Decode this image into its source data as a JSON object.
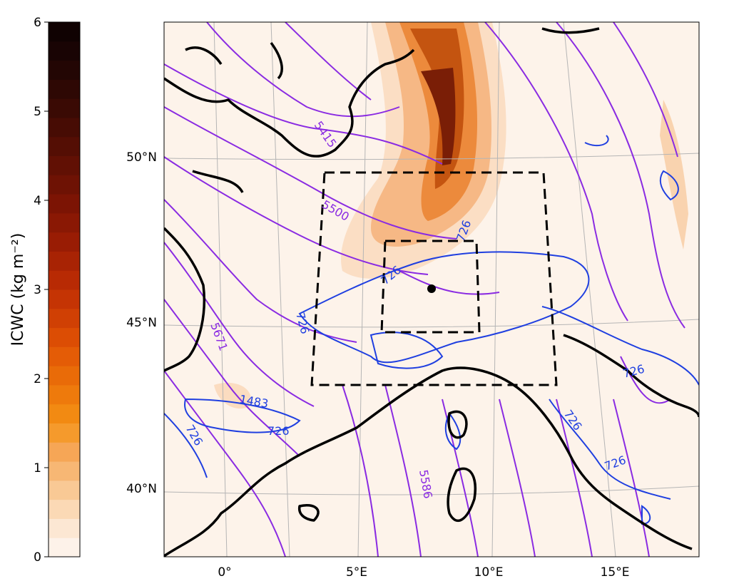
{
  "colorbar": {
    "label": "ICWC (kg m⁻²)",
    "ticks": [
      "0",
      "1",
      "2",
      "3",
      "4",
      "5",
      "6"
    ],
    "min": 0,
    "max": 6,
    "colors": [
      "#fdf2e9",
      "#fce7d3",
      "#fbd9b5",
      "#f9c995",
      "#f7b774",
      "#f6a656",
      "#f59a2c",
      "#f28a12",
      "#ee7a0c",
      "#e96b08",
      "#e45c06",
      "#dc4d04",
      "#d04004",
      "#c53404",
      "#b82a04",
      "#a82304",
      "#991c04",
      "#8a1804",
      "#7c1404",
      "#6e1204",
      "#611004",
      "#540e04",
      "#470c04",
      "#3a0a04",
      "#2e0804",
      "#230604",
      "#190404",
      "#100202"
    ]
  },
  "map": {
    "lat_labels": [
      "50°N",
      "45°N",
      "40°N"
    ],
    "lon_labels": [
      "0°",
      "5°E",
      "10°E",
      "15°E"
    ],
    "geopotential_labels": [
      "5415",
      "5500",
      "5671",
      "5586"
    ],
    "terrain_labels": [
      "726",
      "726",
      "726",
      "726",
      "1483",
      "726",
      "726",
      "726",
      "726"
    ],
    "colors": {
      "geopotential": "#8a2be2",
      "terrain": "#1f3fe0",
      "coast": "#000000",
      "field_low": "#fdf3ea"
    }
  }
}
